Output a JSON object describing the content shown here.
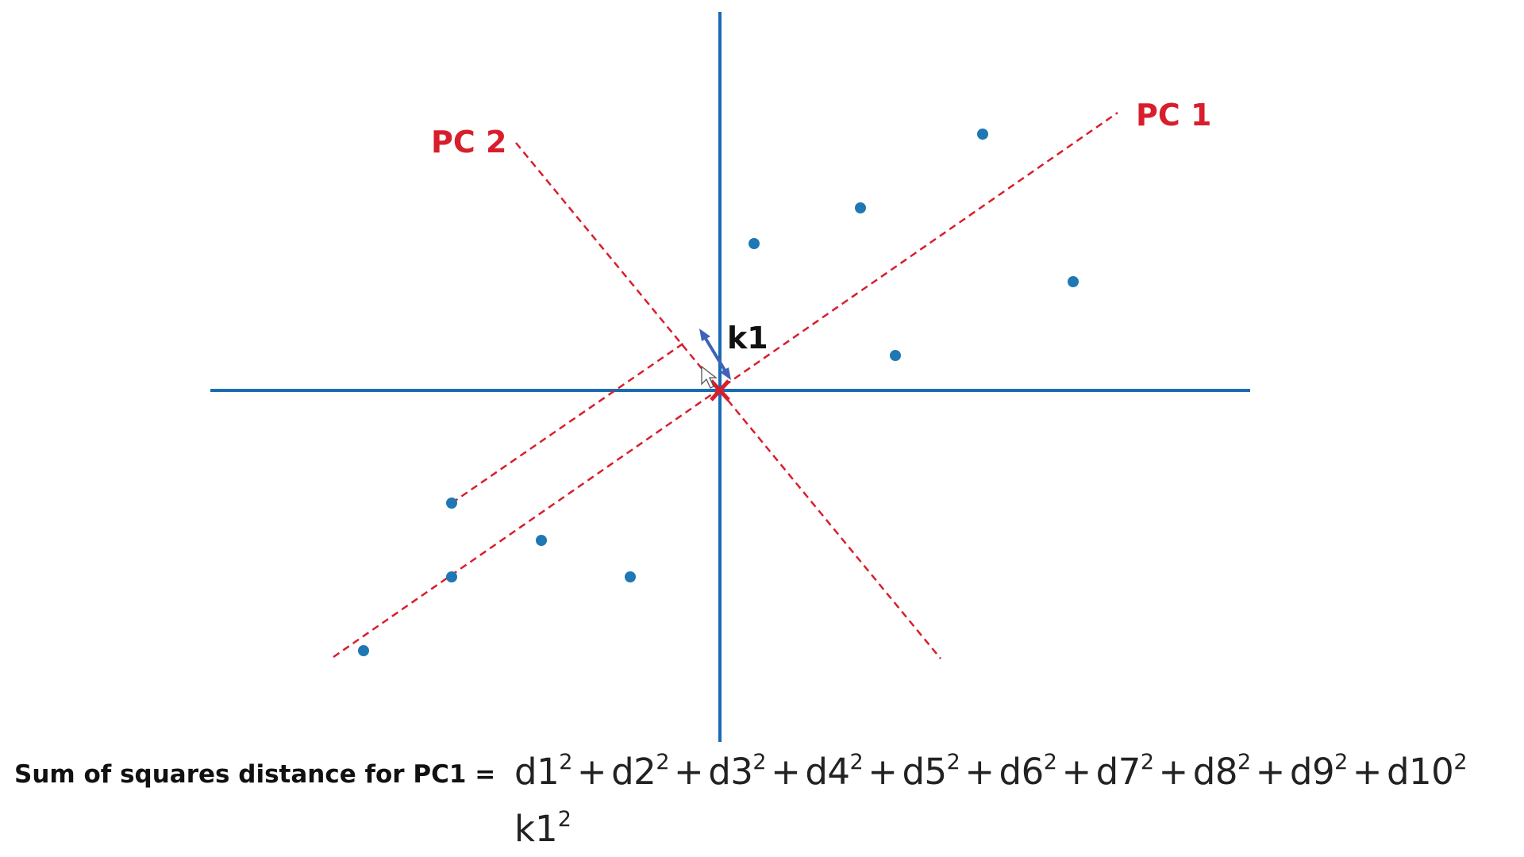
{
  "diagram": {
    "pc1_label": "PC 1",
    "pc2_label": "PC 2",
    "k_label": "k1",
    "label_color": "#d81e2c",
    "axis_color": "#1a6bb3",
    "point_color": "#1f77b4",
    "arrow_color": "#3f63b8",
    "point_count": 10
  },
  "formula": {
    "lhs": "Sum of squares distance for PC1  =",
    "terms": [
      {
        "base": "d1",
        "exp": "2"
      },
      {
        "base": "d2",
        "exp": "2"
      },
      {
        "base": "d3",
        "exp": "2"
      },
      {
        "base": "d4",
        "exp": "2"
      },
      {
        "base": "d5",
        "exp": "2"
      },
      {
        "base": "d6",
        "exp": "2"
      },
      {
        "base": "d7",
        "exp": "2"
      },
      {
        "base": "d8",
        "exp": "2"
      },
      {
        "base": "d9",
        "exp": "2"
      },
      {
        "base": "d10",
        "exp": "2"
      }
    ],
    "plus": "+",
    "line2": {
      "base": "k1",
      "exp": "2"
    }
  }
}
